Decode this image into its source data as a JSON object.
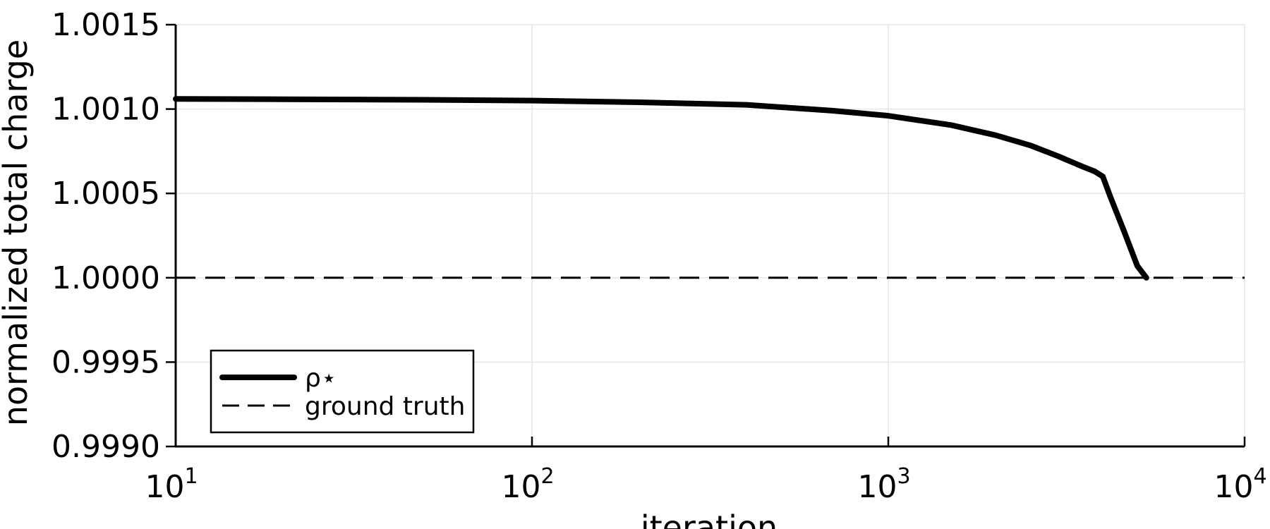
{
  "chart_data": {
    "type": "line",
    "xlabel": "iteration",
    "ylabel": "normalized total charge",
    "xscale": "log",
    "xlim": [
      10,
      10000
    ],
    "ylim": [
      0.999,
      1.0015
    ],
    "grid": true,
    "legend_position": "bottom-left",
    "x_ticks": [
      {
        "value": 10,
        "base": "10",
        "exp": "1"
      },
      {
        "value": 100,
        "base": "10",
        "exp": "2"
      },
      {
        "value": 1000,
        "base": "10",
        "exp": "3"
      },
      {
        "value": 10000,
        "base": "10",
        "exp": "4"
      }
    ],
    "y_ticks": [
      {
        "value": 0.999,
        "label": "0.9990"
      },
      {
        "value": 0.9995,
        "label": "0.9995"
      },
      {
        "value": 1.0,
        "label": "1.0000"
      },
      {
        "value": 1.0005,
        "label": "1.0005"
      },
      {
        "value": 1.001,
        "label": "1.0010"
      },
      {
        "value": 1.0015,
        "label": "1.0015"
      }
    ],
    "series": [
      {
        "name": "ρ⋆",
        "style": "solid-thick",
        "color": "#000000",
        "x": [
          10,
          20,
          50,
          100,
          200,
          400,
          700,
          1000,
          1500,
          2000,
          2500,
          3000,
          3500,
          3800,
          4000,
          4200,
          4600,
          5000,
          5300
        ],
        "y": [
          1.00106,
          1.001058,
          1.001055,
          1.00105,
          1.00104,
          1.001025,
          1.00099,
          1.00096,
          1.000905,
          1.000845,
          1.000785,
          1.00072,
          1.00066,
          1.00063,
          1.0006,
          1.00048,
          1.00027,
          1.00007,
          1.0
        ]
      },
      {
        "name": "ground truth",
        "style": "dashed",
        "color": "#000000",
        "x": [
          10,
          10000
        ],
        "y": [
          1.0,
          1.0
        ]
      }
    ]
  }
}
